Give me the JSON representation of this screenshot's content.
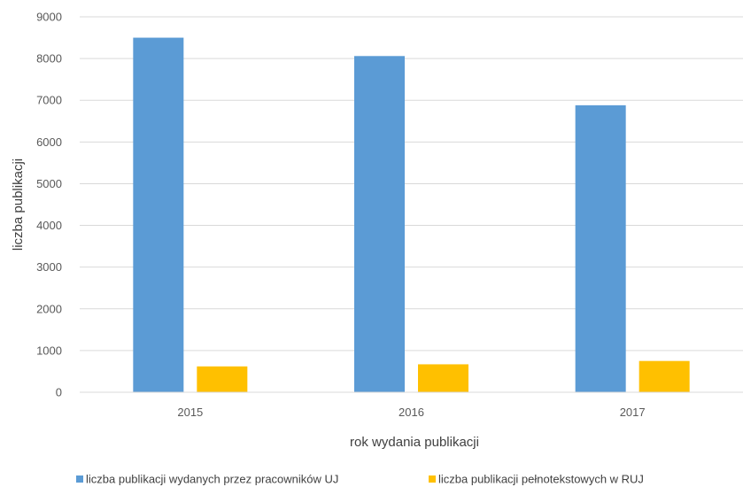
{
  "chart_data": {
    "type": "bar",
    "title": "",
    "xlabel": "rok wydania publikacji",
    "ylabel": "liczba publikacji",
    "categories": [
      "2015",
      "2016",
      "2017"
    ],
    "ylim": [
      0,
      9000
    ],
    "yticks": [
      0,
      1000,
      2000,
      3000,
      4000,
      5000,
      6000,
      7000,
      8000,
      9000
    ],
    "grid": true,
    "legend_position": "bottom",
    "series": [
      {
        "name": "liczba publikacji wydanych przez pracowników UJ",
        "color": "#5b9bd5",
        "values": [
          8500,
          8060,
          6880
        ]
      },
      {
        "name": "liczba publikacji pełnotekstowych w RUJ",
        "color": "#ffc000",
        "values": [
          620,
          670,
          750
        ]
      }
    ]
  }
}
